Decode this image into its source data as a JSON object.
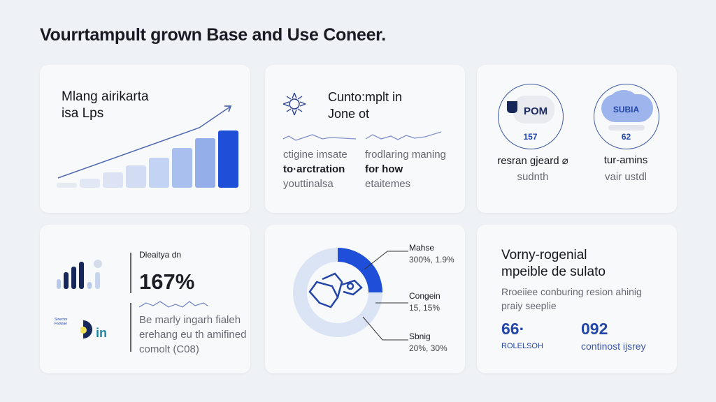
{
  "title": "Vourrtampult grown Base and Use Coneer.",
  "card1": {
    "heading": [
      "Mlang airikarta",
      "isa Lps"
    ],
    "chart_data": {
      "type": "bar",
      "values": [
        7,
        13,
        22,
        32,
        43,
        57,
        71,
        82
      ],
      "trend": "up"
    }
  },
  "card2": {
    "heading": [
      "Cunto:mplt in",
      "Jone ot"
    ],
    "col1": [
      "ctigine imsate",
      "to·arctration",
      "youttinalsa"
    ],
    "col2": [
      "frodlaring maning",
      "for how",
      "etaitemes"
    ]
  },
  "card3": {
    "items": [
      {
        "logo": "POM",
        "value": "157",
        "label": "resran gjeard ⌀",
        "sub": "sudnth"
      },
      {
        "logo": "SUBIA",
        "value": "62",
        "label": "tur-amins",
        "sub": "vair ustdl"
      }
    ]
  },
  "card4": {
    "label": "Dleaitya dn",
    "value": "167%",
    "logo_text": "in",
    "logo_small": "Sinector Faduiae",
    "desc": [
      "Be marly ingarh fialeh",
      "erehang eu th amifined",
      "comolt (C08)"
    ]
  },
  "card5": {
    "chart_data": {
      "type": "pie",
      "highlight_percent": 25,
      "segments": [
        {
          "label": "Mahse",
          "value": "300%, 1.9%"
        },
        {
          "label": "Congein",
          "value": "15, 15%"
        },
        {
          "label": "Sbnig",
          "value": "20%, 30%"
        }
      ]
    }
  },
  "card6": {
    "heading": [
      "Vorny-rogenial",
      "mpeible de sulato"
    ],
    "desc": [
      "Rroeiiee conburing resion ahinig",
      "praiy seeplie"
    ],
    "stats": [
      {
        "value": "66·",
        "label": "ROLELSOH"
      },
      {
        "value": "092",
        "label": "continost ijsrey"
      }
    ]
  },
  "colors": {
    "accent": "#1f4fd8",
    "navy": "#16285a",
    "light": "#dbe4f5"
  }
}
